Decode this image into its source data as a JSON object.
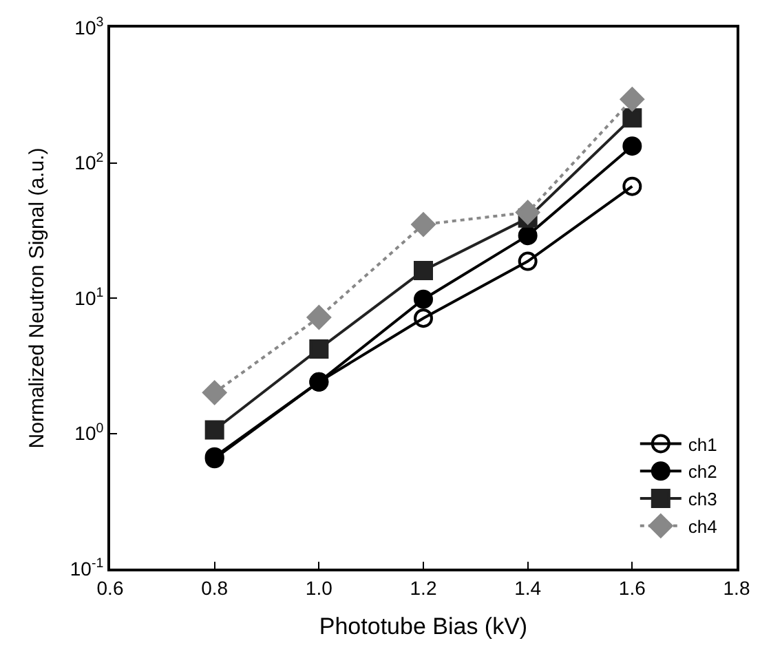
{
  "chart_data": {
    "type": "line",
    "xlabel": "Phototube Bias (kV)",
    "ylabel": "Normalized Neutron Signal (a.u.)",
    "x": [
      0.8,
      1.0,
      1.2,
      1.4,
      1.6
    ],
    "series": [
      {
        "name": "ch1",
        "color": "#000000",
        "marker": "circle-open",
        "line_style": "solid",
        "values": [
          0.67,
          2.4,
          7.1,
          18.7,
          67
        ]
      },
      {
        "name": "ch2",
        "color": "#000000",
        "marker": "circle",
        "line_style": "solid",
        "values": [
          0.65,
          2.4,
          9.8,
          29,
          133
        ]
      },
      {
        "name": "ch3",
        "color": "#222222",
        "marker": "square",
        "line_style": "solid",
        "values": [
          1.06,
          4.2,
          16,
          39,
          215
        ]
      },
      {
        "name": "ch4",
        "color": "#888888",
        "marker": "diamond",
        "line_style": "dotted",
        "values": [
          2.0,
          7.2,
          35,
          43,
          295
        ]
      }
    ],
    "log": "y",
    "xlim": [
      0.6,
      1.8
    ],
    "xticks": [
      0.6,
      0.8,
      {
        "value": 1,
        "label": "1.0"
      },
      1.2,
      1.4,
      1.6,
      1.8
    ],
    "ylim": [
      0.1,
      1000
    ],
    "yticks": [
      {
        "value": 0.1,
        "label": "10$^{-1}$"
      },
      {
        "value": 1,
        "label": "10$^{0}$"
      },
      {
        "value": 10,
        "label": "10$^{1}$"
      },
      {
        "value": 100,
        "label": "10$^{2}$"
      },
      {
        "value": 1000,
        "label": "10$^{3}$"
      }
    ],
    "legend": "bottom right"
  }
}
